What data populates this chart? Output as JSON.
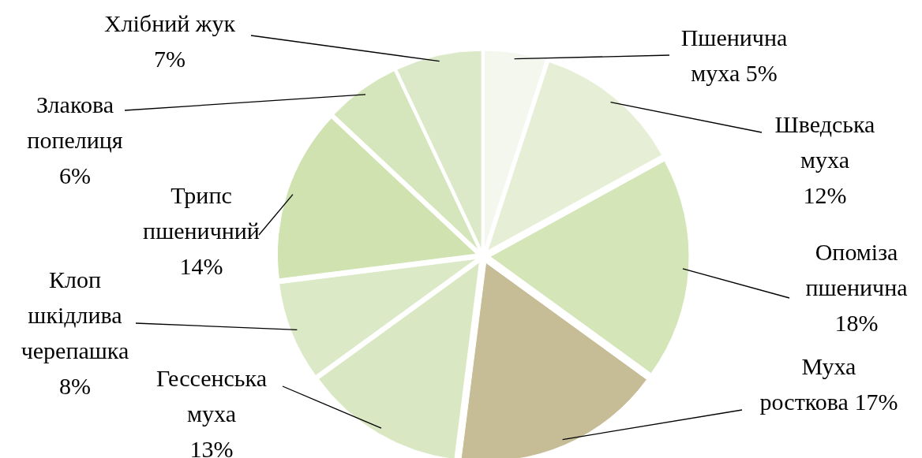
{
  "chart_data": {
    "type": "pie",
    "categories": [
      "Пшенична муха",
      "Шведська муха",
      "Опоміза пшенична",
      "Муха росткова",
      "Гессенська муха",
      "Клоп шкідлива черепашка",
      "Трипс пшеничний",
      "Злакова попелиця",
      "Хлібний жук"
    ],
    "values": [
      5,
      12,
      18,
      17,
      13,
      8,
      14,
      6,
      7
    ],
    "value_labels": [
      "5%",
      "12%",
      "18%",
      "17%",
      "13%",
      "8%",
      "14%",
      "6%",
      "7%"
    ],
    "colors": [
      "#f4f7ee",
      "#e6efd6",
      "#d4e5b8",
      "#c6bc96",
      "#d9e8c2",
      "#dbe9c6",
      "#cfe2b0",
      "#d6e6bc",
      "#dce9c8"
    ]
  }
}
